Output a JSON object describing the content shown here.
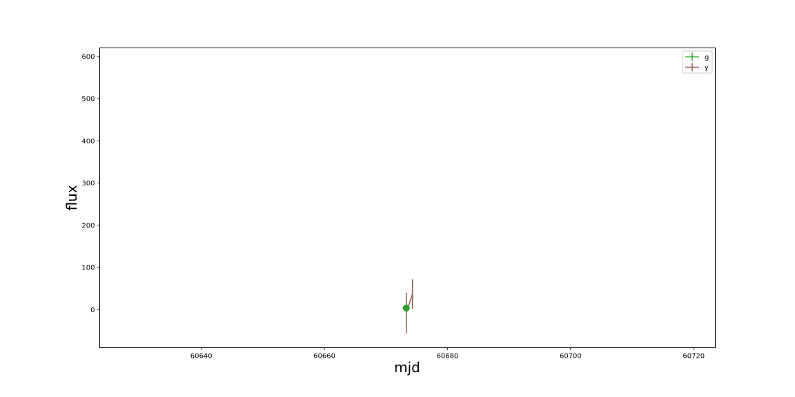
{
  "chart_data": {
    "type": "scatter",
    "xlabel": "mjd",
    "ylabel": "flux",
    "xlim": [
      60623.5,
      60723.5
    ],
    "ylim": [
      -90,
      620
    ],
    "xticks": [
      60640,
      60660,
      60680,
      60700,
      60720
    ],
    "yticks": [
      0,
      100,
      200,
      300,
      400,
      500,
      600
    ],
    "grid": false,
    "legend": "top-right",
    "series": [
      {
        "name": "g",
        "color": "#2ca02c",
        "points": [
          {
            "x": 60673.3,
            "y": 4,
            "yerr": 0
          }
        ]
      },
      {
        "name": "y",
        "color": "#8c564b",
        "points": [
          {
            "x": 60673.3,
            "y": -8,
            "yerr": 48
          },
          {
            "x": 60674.3,
            "y": 37,
            "yerr": 35
          }
        ]
      }
    ]
  }
}
